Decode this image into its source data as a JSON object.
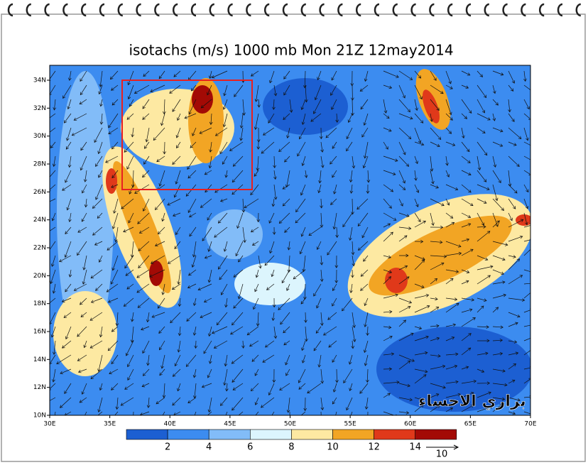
{
  "title": "isotachs (m/s) 1000 mb Mon 21Z 12may2014",
  "lat_labels": [
    "10N",
    "12N",
    "14N",
    "16N",
    "18N",
    "20N",
    "22N",
    "24N",
    "26N",
    "28N",
    "30N",
    "32N",
    "34N"
  ],
  "lon_labels": [
    "30E",
    "35E",
    "40E",
    "45E",
    "50E",
    "55E",
    "60E",
    "65E",
    "70E"
  ],
  "colorbar": {
    "colors": [
      "#1c5fd2",
      "#3c8cf0",
      "#82bcf8",
      "#dcf5fd",
      "#fde9a2",
      "#f2a524",
      "#e0391a",
      "#a30a05"
    ],
    "labels": [
      "2",
      "4",
      "6",
      "8",
      "10",
      "12",
      "14"
    ]
  },
  "reference_vector": "10",
  "watermark": "براري الاحساء"
}
